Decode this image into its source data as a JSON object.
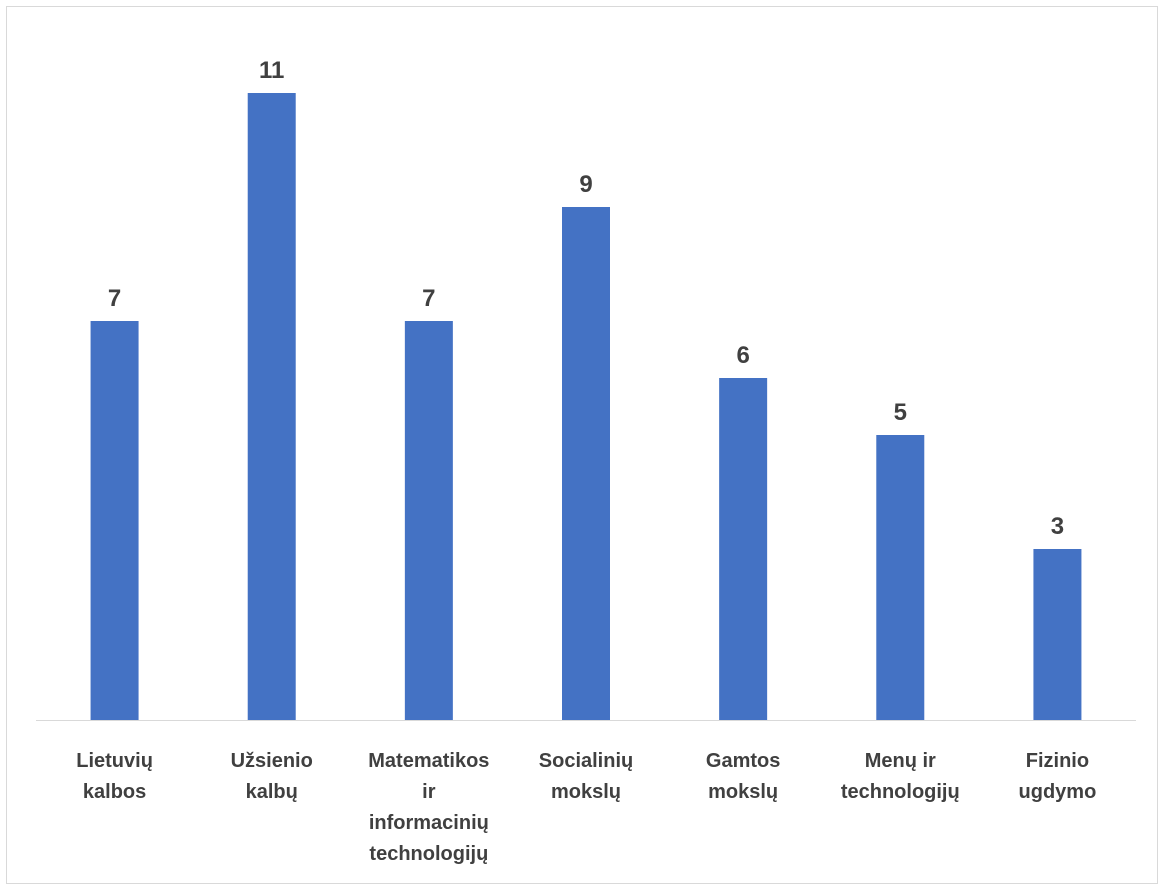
{
  "chart_data": {
    "type": "bar",
    "title": "",
    "xlabel": "",
    "ylabel": "",
    "categories": [
      [
        "Lietuvių",
        "kalbos"
      ],
      [
        "Užsienio",
        "kalbų"
      ],
      [
        "Matematikos",
        "ir",
        "informacinių",
        "technologijų"
      ],
      [
        "Socialinių",
        "mokslų"
      ],
      [
        "Gamtos",
        "mokslų"
      ],
      [
        "Menų ir",
        "technologijų"
      ],
      [
        "Fizinio",
        "ugdymo"
      ]
    ],
    "values": [
      7,
      11,
      7,
      9,
      6,
      5,
      3
    ],
    "ylim": [
      0,
      12
    ],
    "grid": false,
    "legend": "none",
    "colors": {
      "bar": "#4472C4",
      "axis": "#d9d9d9",
      "text": "#404040"
    }
  }
}
